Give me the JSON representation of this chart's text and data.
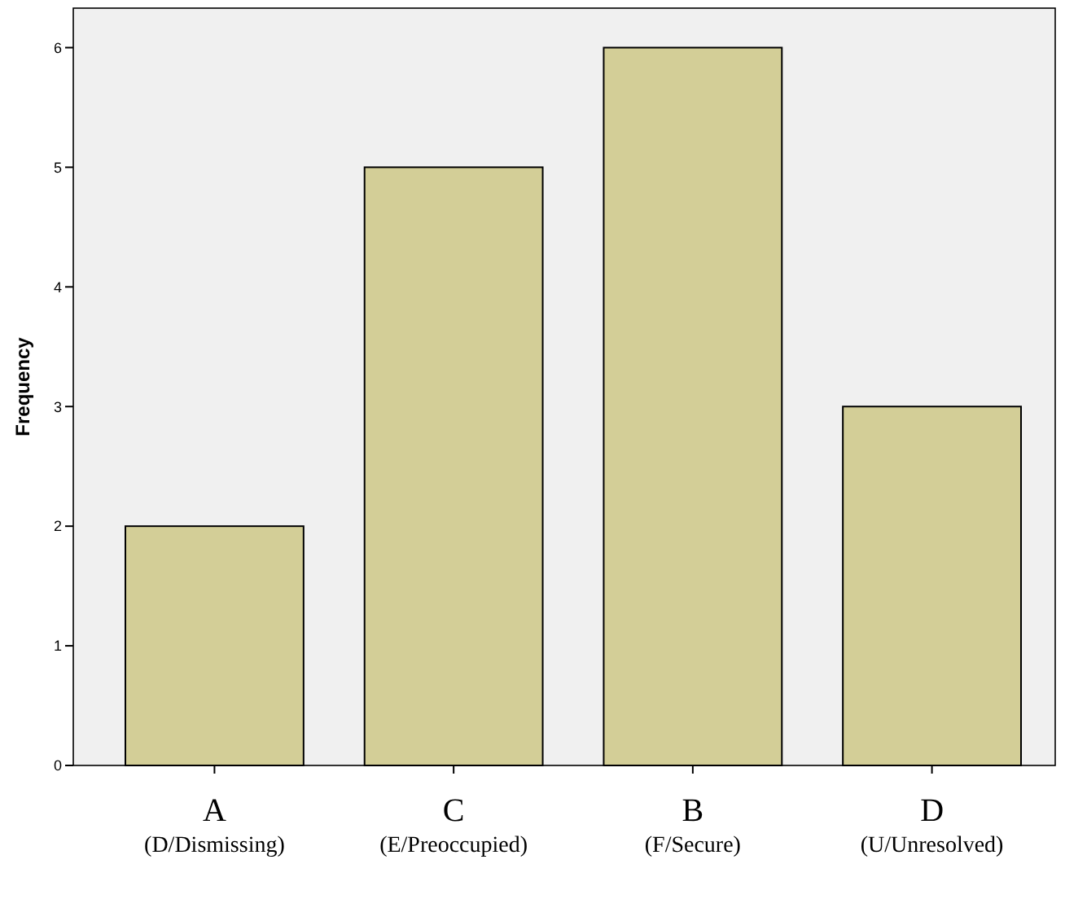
{
  "chart_data": {
    "type": "bar",
    "ylabel": "Frequency",
    "categories": [
      "A\n(D/Dismissing)",
      "C\n(E/Preoccupied)",
      "B\n(F/Secure)",
      "D\n(U/Unresolved)"
    ],
    "values": [
      2,
      5,
      6,
      3
    ],
    "color": "#d3ce97",
    "ylim": [
      0,
      6.33
    ],
    "yticks": [
      0,
      1,
      2,
      3,
      4,
      5,
      6
    ],
    "grid": false
  }
}
